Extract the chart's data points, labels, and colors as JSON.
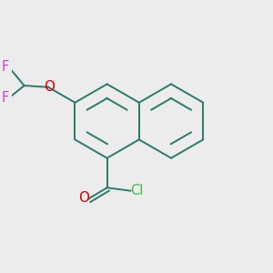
{
  "background_color": "#ececec",
  "bond_color": "#2a7a6a",
  "O_color": "#dd0000",
  "Cl_color": "#44bb44",
  "F_color": "#cc44cc",
  "line_width": 1.4,
  "font_size": 10.5,
  "figsize": [
    3.0,
    3.0
  ],
  "dpi": 100,
  "xlim": [
    -2.2,
    2.0
  ],
  "ylim": [
    -1.6,
    1.6
  ]
}
